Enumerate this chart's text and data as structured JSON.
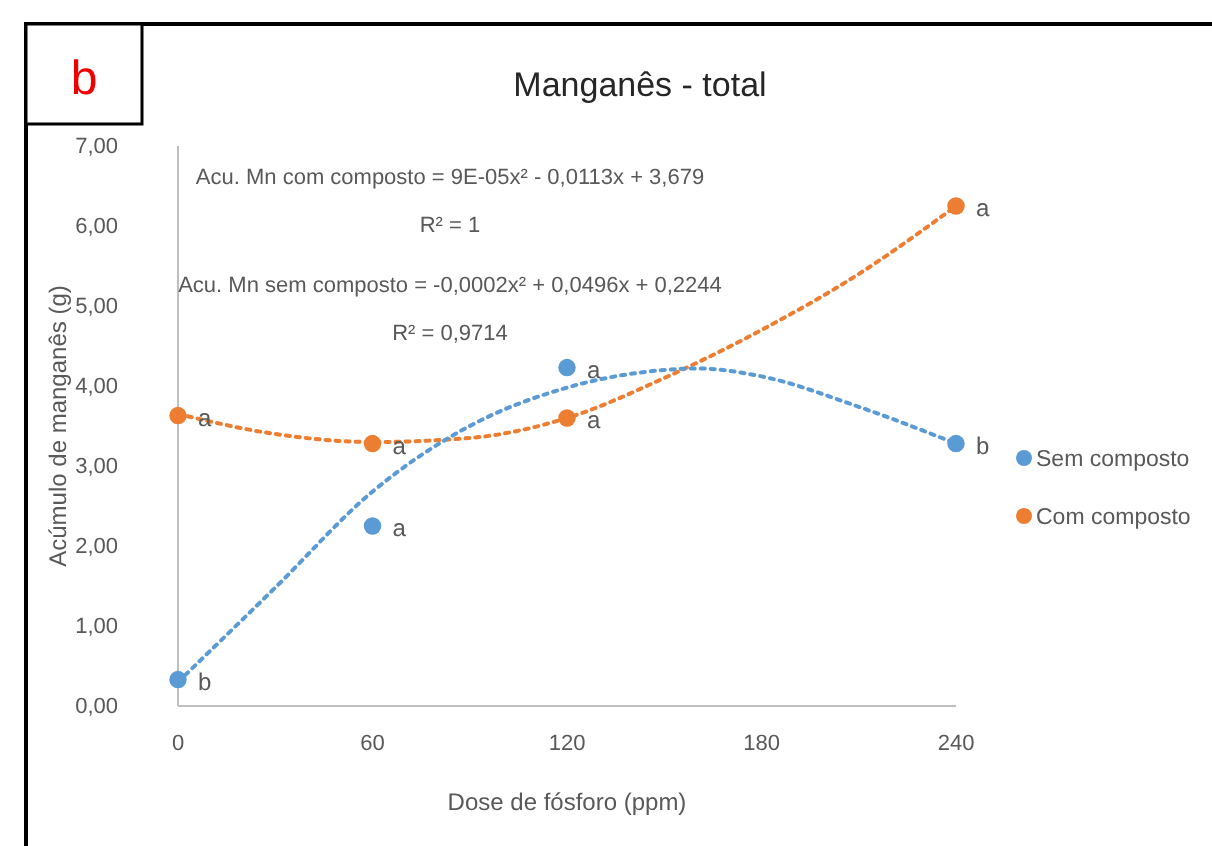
{
  "chart_data": {
    "type": "scatter",
    "title": "Manganês - total",
    "xlabel": "Dose de fósforo (ppm)",
    "ylabel": "Acúmulo de manganês (g)",
    "xlim": [
      0,
      240
    ],
    "xticks": [
      0,
      60,
      120,
      180,
      240
    ],
    "ylim": [
      0,
      7
    ],
    "yticks": [
      {
        "value": 0,
        "label": "0,00"
      },
      {
        "value": 1,
        "label": "1,00"
      },
      {
        "value": 2,
        "label": "2,00"
      },
      {
        "value": 3,
        "label": "3,00"
      },
      {
        "value": 4,
        "label": "4,00"
      },
      {
        "value": 5,
        "label": "5,00"
      },
      {
        "value": 6,
        "label": "6,00"
      },
      {
        "value": 7,
        "label": "7,00"
      }
    ],
    "grid": false,
    "legend": "right",
    "marker": "circle",
    "series": [
      {
        "name": "Sem composto",
        "color": "#5b9bd5",
        "x": [
          0,
          60,
          120,
          240
        ],
        "values": [
          0.33,
          2.25,
          4.23,
          3.28
        ]
      },
      {
        "name": "Com composto",
        "color": "#ed7d31",
        "x": [
          0,
          60,
          120,
          240
        ],
        "values": [
          3.63,
          3.28,
          3.6,
          6.25
        ]
      },
      {
        "type": "line",
        "color": "#5b9bd5",
        "line_style": "dotted",
        "marker": "none",
        "x": [
          0,
          30,
          60,
          90,
          120,
          150,
          160,
          180,
          210,
          240
        ],
        "values": [
          0.3,
          1.48,
          2.68,
          3.5,
          3.98,
          4.2,
          4.22,
          4.12,
          3.74,
          3.28
        ]
      },
      {
        "type": "line",
        "color": "#ed7d31",
        "line_style": "dotted",
        "marker": "none",
        "x": [
          0,
          30,
          60,
          90,
          120,
          150,
          180,
          210,
          240
        ],
        "values": [
          3.65,
          3.4,
          3.3,
          3.35,
          3.6,
          4.1,
          4.7,
          5.4,
          6.25
        ]
      }
    ],
    "annotations": [
      "b",
      "Acu.  Mn com composto    = 9E-05x² - 0,0113x + 3,679",
      "R² = 1",
      "Acu.  Mn sem composto    = -0,0002x² + 0,0496x + 0,2244",
      "R² = 0,9714",
      {
        "text": "b",
        "x": 0,
        "y": 0.33
      },
      {
        "text": "a",
        "x": 60,
        "y": 2.25
      },
      {
        "text": "a",
        "x": 120,
        "y": 4.23
      },
      {
        "text": "b",
        "x": 240,
        "y": 3.28
      },
      {
        "text": "a",
        "x": 0,
        "y": 3.63
      },
      {
        "text": "a",
        "x": 60,
        "y": 3.28
      },
      {
        "text": "a",
        "x": 120,
        "y": 3.6
      },
      {
        "text": "a",
        "x": 240,
        "y": 6.25
      }
    ]
  }
}
